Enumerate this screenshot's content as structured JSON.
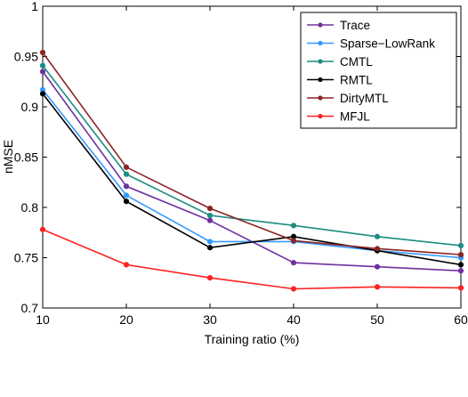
{
  "chart_data": {
    "type": "line",
    "title": "",
    "xlabel": "Training ratio (%)",
    "ylabel": "nMSE",
    "x": [
      10,
      20,
      30,
      40,
      50,
      60
    ],
    "xlim": [
      10,
      60
    ],
    "ylim": [
      0.7,
      1.0
    ],
    "xticks": [
      10,
      20,
      30,
      40,
      50,
      60
    ],
    "yticks": [
      0.7,
      0.75,
      0.8,
      0.85,
      0.9,
      0.95,
      1.0
    ],
    "ytick_labels": [
      "0.7",
      "0.75",
      "0.8",
      "0.85",
      "0.9",
      "0.95",
      "1"
    ],
    "grid": false,
    "legend_position": "top-right",
    "series": [
      {
        "name": "Trace",
        "color": "#7030a0",
        "values": [
          0.935,
          0.821,
          0.787,
          0.745,
          0.741,
          0.737
        ]
      },
      {
        "name": "Sparse−LowRank",
        "color": "#3399ff",
        "values": [
          0.917,
          0.812,
          0.766,
          0.766,
          0.757,
          0.75
        ]
      },
      {
        "name": "CMTL",
        "color": "#1a8c7f",
        "values": [
          0.941,
          0.833,
          0.792,
          0.782,
          0.771,
          0.762
        ]
      },
      {
        "name": "RMTL",
        "color": "#000000",
        "values": [
          0.913,
          0.806,
          0.76,
          0.771,
          0.757,
          0.743
        ]
      },
      {
        "name": "DirtyMTL",
        "color": "#8b2525",
        "values": [
          0.954,
          0.84,
          0.799,
          0.767,
          0.759,
          0.753
        ]
      },
      {
        "name": "MFJL",
        "color": "#ff2020",
        "values": [
          0.778,
          0.743,
          0.73,
          0.719,
          0.721,
          0.72
        ]
      }
    ]
  }
}
